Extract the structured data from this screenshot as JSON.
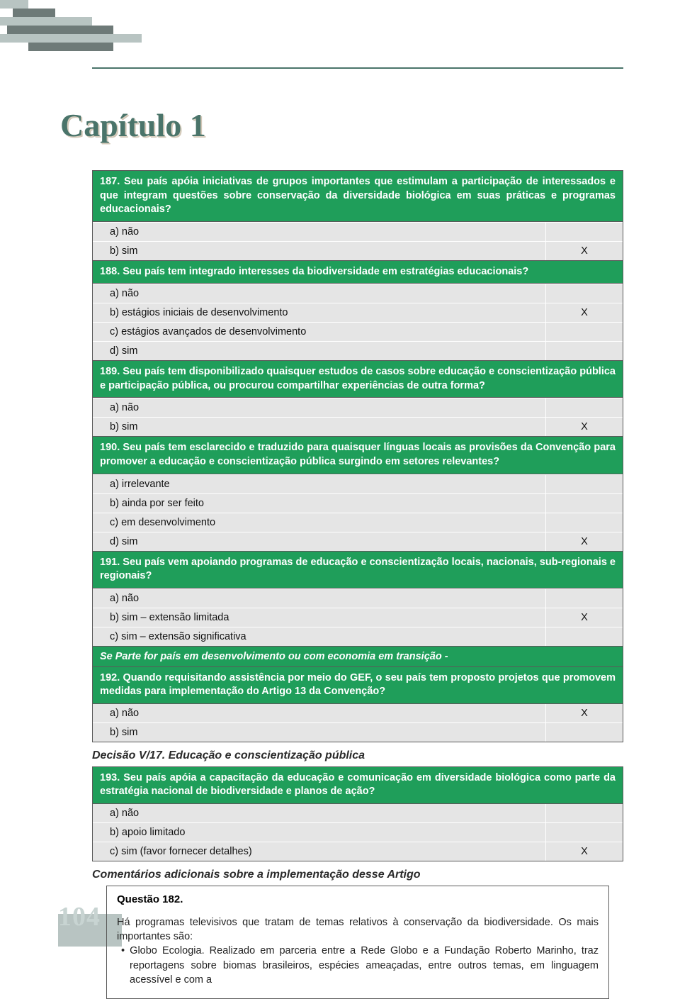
{
  "chapter_title": "Capítulo 1",
  "page_number": "104",
  "colors": {
    "header_green": "#1f9e5a",
    "row_gray": "#e5e5e5",
    "title_green": "#4a746a",
    "decor_dark": "#6e7a78",
    "decor_light": "#b8c4c2"
  },
  "questions": [
    {
      "num": "187.",
      "text": "Seu país apóia iniciativas de grupos importantes que estimulam a participação de interessados e que integram questões sobre conservação da diversidade biológica em suas práticas e programas educacionais?",
      "options": [
        {
          "letter": "a)",
          "label": "não",
          "mark": ""
        },
        {
          "letter": "b)",
          "label": "sim",
          "mark": "X"
        }
      ]
    },
    {
      "num": "188.",
      "text": "Seu país tem integrado interesses da biodiversidade em estratégias educacionais?",
      "options": [
        {
          "letter": "a)",
          "label": "não",
          "mark": ""
        },
        {
          "letter": "b)",
          "label": "estágios iniciais de desenvolvimento",
          "mark": "X"
        },
        {
          "letter": "c)",
          "label": "estágios avançados de desenvolvimento",
          "mark": ""
        },
        {
          "letter": "d)",
          "label": "sim",
          "mark": ""
        }
      ]
    },
    {
      "num": "189.",
      "text": "Seu país tem disponibilizado quaisquer estudos de casos sobre educação e conscientização pública e participação pública, ou procurou compartilhar experiências de outra forma?",
      "options": [
        {
          "letter": "a)",
          "label": "não",
          "mark": ""
        },
        {
          "letter": "b)",
          "label": "sim",
          "mark": "X"
        }
      ]
    },
    {
      "num": "190.",
      "text": "Seu país tem esclarecido e traduzido para quaisquer línguas locais as provisões da Convenção para promover a educação e conscientização pública surgindo em setores relevantes?",
      "options": [
        {
          "letter": "a)",
          "label": "irrelevante",
          "mark": ""
        },
        {
          "letter": "b)",
          "label": "ainda por ser feito",
          "mark": ""
        },
        {
          "letter": "c)",
          "label": "em desenvolvimento",
          "mark": ""
        },
        {
          "letter": "d)",
          "label": "sim",
          "mark": "X"
        }
      ]
    },
    {
      "num": "191.",
      "text": "Seu país vem apoiando programas de educação e conscientização locais, nacionais, sub-regionais e regionais?",
      "options": [
        {
          "letter": "a)",
          "label": "não",
          "mark": ""
        },
        {
          "letter": "b)",
          "label": "sim – extensão limitada",
          "mark": "X"
        },
        {
          "letter": "c)",
          "label": "sim – extensão significativa",
          "mark": ""
        }
      ]
    }
  ],
  "mid_section": "Se Parte for país em desenvolvimento ou com economia em transição -",
  "q192": {
    "num": "192.",
    "text": "Quando requisitando assistência por meio do GEF, o seu país tem proposto projetos que promovem medidas para implementação do Artigo 13 da Convenção?",
    "options": [
      {
        "letter": "a)",
        "label": "não",
        "mark": "X"
      },
      {
        "letter": "b)",
        "label": "sim",
        "mark": ""
      }
    ]
  },
  "decision_title": "Decisão V/17. Educação e conscientização pública",
  "q193": {
    "num": "193.",
    "text": "Seu país apóia a capacitação da educação e comunicação em diversidade biológica como parte da estratégia nacional de biodiversidade e planos de ação?",
    "options": [
      {
        "letter": "a)",
        "label": "não",
        "mark": ""
      },
      {
        "letter": "b)",
        "label": "apoio limitado",
        "mark": ""
      },
      {
        "letter": "c)",
        "label": "sim (favor fornecer detalhes)",
        "mark": "X"
      }
    ]
  },
  "comments_title": "Comentários adicionais sobre a implementação desse Artigo",
  "cbox": {
    "title": "Questão 182.",
    "p1": "Há programas televisivos que tratam de temas relativos à conservação da biodiversidade. Os mais importantes são:",
    "p2": "•  Globo Ecologia. Realizado em parceria entre a Rede Globo e a Fundação Roberto Marinho, traz reportagens sobre biomas brasileiros, espécies ameaçadas, entre outros temas, em linguagem acessível e com a"
  }
}
